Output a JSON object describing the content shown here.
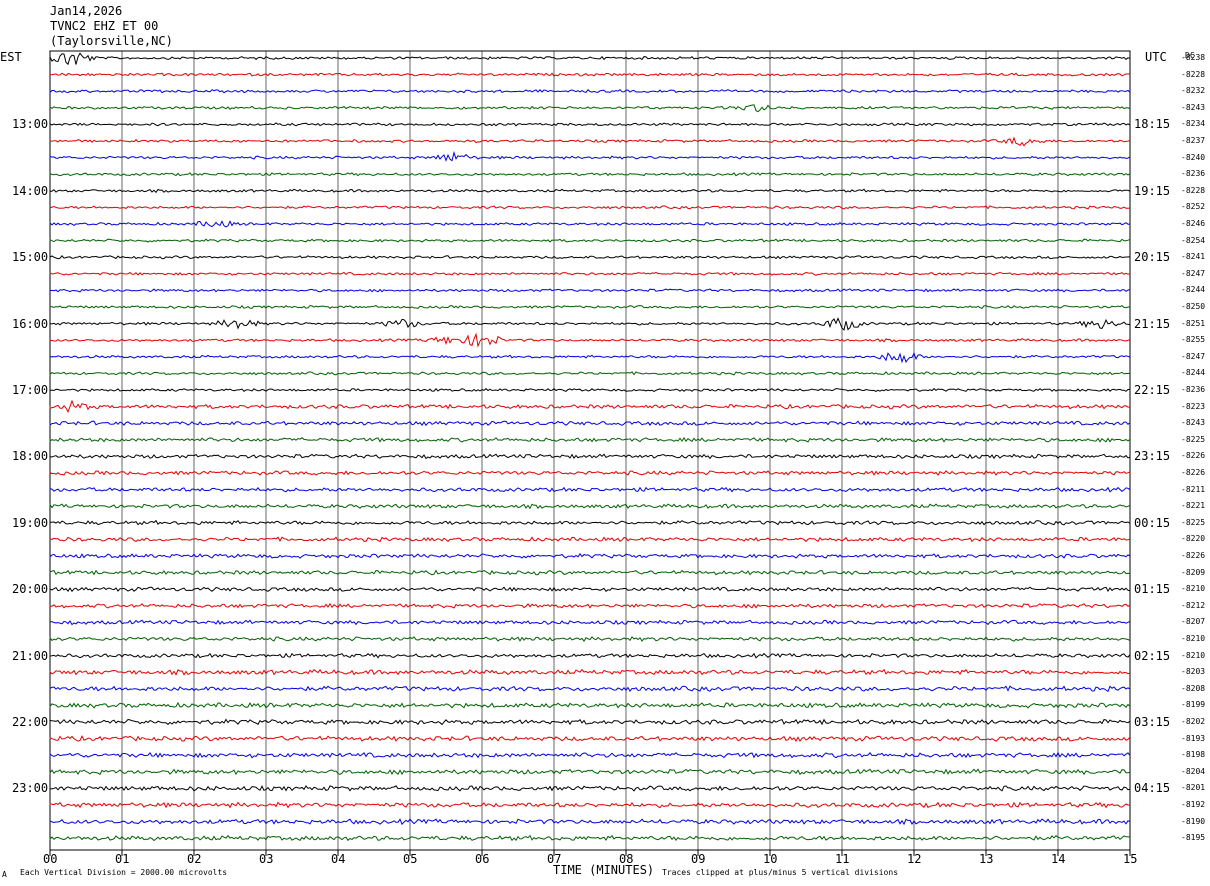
{
  "header": {
    "date": "Jan14,2026",
    "channel": "TVNC2 EHZ ET 00",
    "location": "(Taylorsville,NC)"
  },
  "axes": {
    "left_tz": "EST",
    "right_tz": "UTC",
    "dc_label": "DC",
    "xlabel": "TIME (MINUTES)"
  },
  "footer": {
    "scale_note": "Each Vertical Division = 2000.00 microvolts",
    "clip_note": "Traces clipped at plus/minus 5 vertical divisions",
    "corner_mark": "A"
  },
  "colors": {
    "trace_cycle": [
      "#000000",
      "#e00000",
      "#0000e0",
      "#006000"
    ],
    "grid": "#000000",
    "background": "#ffffff"
  },
  "chart_data": {
    "type": "line",
    "title": "TVNC2 EHZ ET 00",
    "x_ticks": [
      "00",
      "01",
      "02",
      "03",
      "04",
      "05",
      "06",
      "07",
      "08",
      "09",
      "10",
      "11",
      "12",
      "13",
      "14",
      "15"
    ],
    "xlim": [
      0,
      15
    ],
    "left_hour_labels": [
      "13:00",
      "14:00",
      "15:00",
      "16:00",
      "17:00",
      "18:00",
      "19:00",
      "20:00",
      "21:00",
      "22:00",
      "23:00"
    ],
    "right_hour_labels": [
      "18:15",
      "19:15",
      "20:15",
      "21:15",
      "22:15",
      "23:15",
      "00:15",
      "01:15",
      "02:15",
      "03:15",
      "04:15"
    ],
    "trace_count": 48,
    "dc_offsets": [
      "-8238",
      "-8228",
      "-8232",
      "-8243",
      "-8234",
      "-8237",
      "-8240",
      "-8236",
      "-8228",
      "-8252",
      "-8246",
      "-8254",
      "-8241",
      "-8247",
      "-8244",
      "-8250",
      "-8251",
      "-8255",
      "-8247",
      "-8244",
      "-8236",
      "-8223",
      "-8243",
      "-8225",
      "-8226",
      "-8226",
      "-8211",
      "-8221",
      "-8225",
      "-8220",
      "-8226",
      "-8209",
      "-8210",
      "-8212",
      "-8207",
      "-8210",
      "-8210",
      "-8203",
      "-8208",
      "-8199",
      "-8202",
      "-8193",
      "-8198",
      "-8204",
      "-8201",
      "-8192",
      "-8190",
      "-8195"
    ],
    "events": [
      {
        "trace": 0,
        "minute": 0.3,
        "amp": 2.2
      },
      {
        "trace": 3,
        "minute": 9.8,
        "amp": 0.8
      },
      {
        "trace": 5,
        "minute": 13.5,
        "amp": 1.0
      },
      {
        "trace": 6,
        "minute": 5.6,
        "amp": 1.1
      },
      {
        "trace": 10,
        "minute": 2.3,
        "amp": 0.8
      },
      {
        "trace": 16,
        "minute": 2.6,
        "amp": 1.3
      },
      {
        "trace": 16,
        "minute": 4.9,
        "amp": 1.0
      },
      {
        "trace": 16,
        "minute": 11.0,
        "amp": 1.6
      },
      {
        "trace": 16,
        "minute": 14.6,
        "amp": 1.2
      },
      {
        "trace": 17,
        "minute": 6.0,
        "amp": 1.8
      },
      {
        "trace": 17,
        "minute": 5.5,
        "amp": 0.8
      },
      {
        "trace": 18,
        "minute": 11.8,
        "amp": 1.6
      },
      {
        "trace": 21,
        "minute": 0.3,
        "amp": 1.0
      }
    ]
  }
}
